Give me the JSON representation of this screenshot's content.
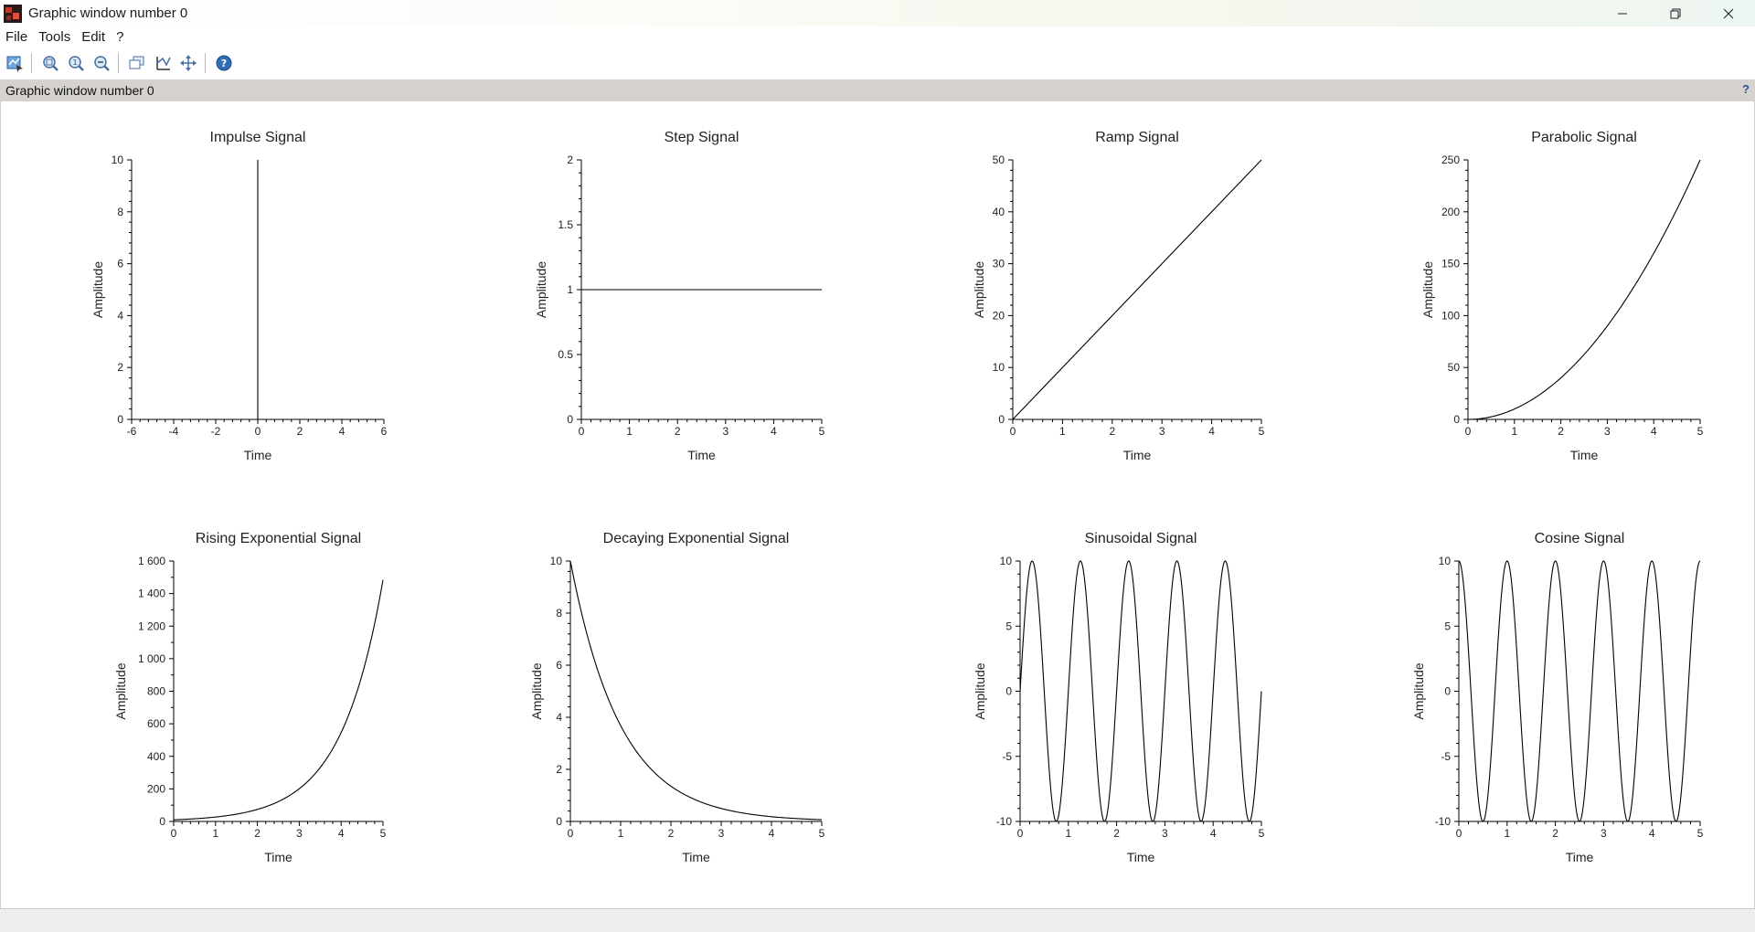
{
  "window": {
    "title": "Graphic window number 0",
    "controls": [
      "minimize-icon",
      "restore-icon",
      "close-icon"
    ]
  },
  "menu": {
    "items": [
      "File",
      "Tools",
      "Edit",
      "?"
    ]
  },
  "toolbar": {
    "buttons": [
      {
        "name": "datatip-icon"
      },
      {
        "name": "zoom-box-icon"
      },
      {
        "name": "zoom-original-icon"
      },
      {
        "name": "zoom-out-icon"
      },
      {
        "name": "rotate-3d-icon"
      },
      {
        "name": "axes-editor-icon"
      },
      {
        "name": "pan-icon"
      },
      {
        "name": "help-icon"
      }
    ]
  },
  "infobar": {
    "title": "Graphic window number 0",
    "help": "?"
  },
  "chart_data": [
    {
      "type": "line",
      "title": "Impulse Signal",
      "xlabel": "Time",
      "ylabel": "Amplitude",
      "xlim": [
        -6,
        6
      ],
      "ylim": [
        0,
        10
      ],
      "xticks": [
        "-6",
        "-4",
        "-2",
        "0",
        "2",
        "4",
        "6"
      ],
      "yticks": [
        "0",
        "2",
        "4",
        "6",
        "8",
        "10"
      ],
      "series": [
        {
          "name": "impulse",
          "x": [
            0,
            0
          ],
          "y": [
            0,
            10
          ]
        }
      ]
    },
    {
      "type": "line",
      "title": "Step Signal",
      "xlabel": "Time",
      "ylabel": "Amplitude",
      "xlim": [
        0,
        5
      ],
      "ylim": [
        0,
        2
      ],
      "xticks": [
        "0",
        "1",
        "2",
        "3",
        "4",
        "5"
      ],
      "yticks": [
        "0",
        "0.5",
        "1",
        "1.5",
        "2"
      ],
      "series": [
        {
          "name": "step",
          "x": [
            0,
            5
          ],
          "y": [
            1,
            1
          ]
        }
      ]
    },
    {
      "type": "line",
      "title": "Ramp Signal",
      "xlabel": "Time",
      "ylabel": "Amplitude",
      "xlim": [
        0,
        5
      ],
      "ylim": [
        0,
        50
      ],
      "xticks": [
        "0",
        "1",
        "2",
        "3",
        "4",
        "5"
      ],
      "yticks": [
        "0",
        "10",
        "20",
        "30",
        "40",
        "50"
      ],
      "series": [
        {
          "name": "ramp",
          "x": [
            0,
            5
          ],
          "y": [
            0,
            50
          ]
        }
      ]
    },
    {
      "type": "line",
      "title": "Parabolic Signal",
      "xlabel": "Time",
      "ylabel": "Amplitude",
      "xlim": [
        0,
        5
      ],
      "ylim": [
        0,
        250
      ],
      "xticks": [
        "0",
        "1",
        "2",
        "3",
        "4",
        "5"
      ],
      "yticks": [
        "0",
        "50",
        "100",
        "150",
        "200",
        "250"
      ],
      "series": [
        {
          "name": "parabolic",
          "x": [
            0,
            0.5,
            1,
            1.5,
            2,
            2.5,
            3,
            3.5,
            4,
            4.5,
            5
          ],
          "y": [
            0,
            2.5,
            10,
            22.5,
            40,
            62.5,
            90,
            122.5,
            160,
            202.5,
            250
          ]
        }
      ]
    },
    {
      "type": "line",
      "title": "Rising Exponential Signal",
      "xlabel": "Time",
      "ylabel": "Amplitude",
      "xlim": [
        0,
        5
      ],
      "ylim": [
        0,
        1600
      ],
      "xticks": [
        "0",
        "1",
        "2",
        "3",
        "4",
        "5"
      ],
      "yticks": [
        "0",
        "200",
        "400",
        "600",
        "800",
        "1 000",
        "1 200",
        "1 400",
        "1 600"
      ],
      "series": [
        {
          "name": "rising-exp",
          "x": [
            0,
            0.5,
            1,
            1.5,
            2,
            2.5,
            3,
            3.5,
            4,
            4.5,
            5
          ],
          "y": [
            10,
            16.5,
            27.2,
            44.8,
            73.9,
            121.8,
            200.9,
            331.2,
            546.0,
            900.2,
            1484.1
          ]
        }
      ]
    },
    {
      "type": "line",
      "title": "Decaying Exponential Signal",
      "xlabel": "Time",
      "ylabel": "Amplitude",
      "xlim": [
        0,
        5
      ],
      "ylim": [
        0,
        10
      ],
      "xticks": [
        "0",
        "1",
        "2",
        "3",
        "4",
        "5"
      ],
      "yticks": [
        "0",
        "2",
        "4",
        "6",
        "8",
        "10"
      ],
      "series": [
        {
          "name": "decaying-exp",
          "x": [
            0,
            0.5,
            1,
            1.5,
            2,
            2.5,
            3,
            3.5,
            4,
            4.5,
            5
          ],
          "y": [
            10,
            6.07,
            3.68,
            2.23,
            1.35,
            0.82,
            0.5,
            0.3,
            0.18,
            0.11,
            0.07
          ]
        }
      ]
    },
    {
      "type": "line",
      "title": "Sinusoidal Signal",
      "xlabel": "Time",
      "ylabel": "Amplitude",
      "xlim": [
        0,
        5
      ],
      "ylim": [
        -10,
        10
      ],
      "xticks": [
        "0",
        "1",
        "2",
        "3",
        "4",
        "5"
      ],
      "yticks": [
        "-10",
        "-5",
        "0",
        "5",
        "10"
      ],
      "series": [
        {
          "name": "sine",
          "function": "10*sin(2*pi*t)",
          "t_range": [
            0,
            5
          ],
          "amplitude": 10,
          "frequency": 1
        }
      ]
    },
    {
      "type": "line",
      "title": "Cosine Signal",
      "xlabel": "Time",
      "ylabel": "Amplitude",
      "xlim": [
        0,
        5
      ],
      "ylim": [
        -10,
        10
      ],
      "xticks": [
        "0",
        "1",
        "2",
        "3",
        "4",
        "5"
      ],
      "yticks": [
        "-10",
        "-5",
        "0",
        "5",
        "10"
      ],
      "series": [
        {
          "name": "cosine",
          "function": "10*cos(2*pi*t)",
          "t_range": [
            0,
            5
          ],
          "amplitude": 10,
          "frequency": 1
        }
      ]
    }
  ]
}
